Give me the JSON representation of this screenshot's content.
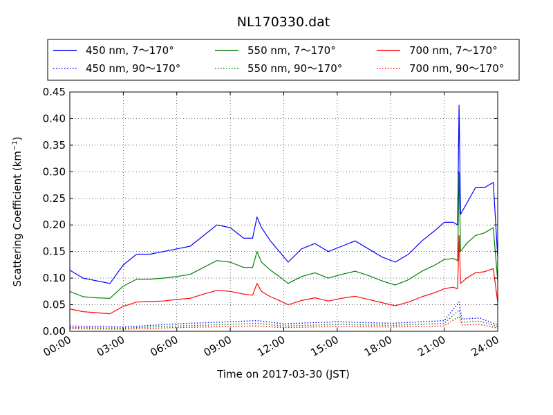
{
  "chart_data": {
    "type": "line",
    "title": "NL170330.dat",
    "xlabel": "Time on 2017-03-30 (JST)",
    "ylabel": "Scattering Coefficient (km⁻¹)",
    "ylabel_base": "Scattering Coefficient (km",
    "ylabel_sup": "−1",
    "ylabel_close": ")",
    "xlim": [
      "00:00",
      "24:00"
    ],
    "ylim": [
      0,
      0.45
    ],
    "grid": true,
    "legend_position": "top",
    "x_ticks": [
      "00:00",
      "03:00",
      "06:00",
      "09:00",
      "12:00",
      "15:00",
      "18:00",
      "21:00",
      "24:00"
    ],
    "y_ticks": [
      "0.00",
      "0.05",
      "0.10",
      "0.15",
      "0.20",
      "0.25",
      "0.30",
      "0.35",
      "0.40",
      "0.45"
    ],
    "series": [
      {
        "name": "450 nm, 7～170°",
        "color": "#0000ff",
        "style": "solid",
        "x": [
          "00:00",
          "00:45",
          "01:30",
          "02:15",
          "03:00",
          "03:45",
          "04:30",
          "05:15",
          "06:00",
          "06:45",
          "07:30",
          "08:15",
          "09:00",
          "09:45",
          "10:15",
          "10:30",
          "10:45",
          "11:15",
          "11:45",
          "12:15",
          "13:00",
          "13:45",
          "14:30",
          "15:15",
          "16:00",
          "16:45",
          "17:30",
          "18:15",
          "19:00",
          "19:45",
          "20:30",
          "21:00",
          "21:30",
          "21:45",
          "21:50",
          "21:55",
          "22:15",
          "22:45",
          "23:15",
          "23:45",
          "24:00"
        ],
        "y": [
          0.115,
          0.1,
          0.095,
          0.09,
          0.125,
          0.145,
          0.145,
          0.15,
          0.155,
          0.16,
          0.18,
          0.2,
          0.195,
          0.175,
          0.175,
          0.215,
          0.195,
          0.17,
          0.15,
          0.13,
          0.155,
          0.165,
          0.15,
          0.16,
          0.17,
          0.155,
          0.14,
          0.13,
          0.145,
          0.17,
          0.19,
          0.205,
          0.205,
          0.2,
          0.425,
          0.22,
          0.24,
          0.27,
          0.27,
          0.28,
          0.14
        ]
      },
      {
        "name": "450 nm, 90～170°",
        "color": "#0000ff",
        "style": "dotted",
        "x": [
          "00:00",
          "03:00",
          "06:00",
          "09:00",
          "10:30",
          "12:00",
          "15:00",
          "18:00",
          "21:00",
          "21:50",
          "22:00",
          "23:00",
          "24:00"
        ],
        "y": [
          0.01,
          0.008,
          0.014,
          0.018,
          0.02,
          0.014,
          0.018,
          0.015,
          0.02,
          0.055,
          0.023,
          0.025,
          0.012
        ]
      },
      {
        "name": "550 nm, 7～170°",
        "color": "#008000",
        "style": "solid",
        "x": [
          "00:00",
          "00:45",
          "01:30",
          "02:15",
          "03:00",
          "03:45",
          "04:30",
          "05:15",
          "06:00",
          "06:45",
          "07:30",
          "08:15",
          "09:00",
          "09:45",
          "10:15",
          "10:30",
          "10:45",
          "11:15",
          "11:45",
          "12:15",
          "13:00",
          "13:45",
          "14:30",
          "15:15",
          "16:00",
          "16:45",
          "17:30",
          "18:15",
          "19:00",
          "19:45",
          "20:30",
          "21:00",
          "21:30",
          "21:45",
          "21:50",
          "21:55",
          "22:15",
          "22:45",
          "23:15",
          "23:45",
          "24:00"
        ],
        "y": [
          0.075,
          0.065,
          0.063,
          0.062,
          0.085,
          0.098,
          0.098,
          0.1,
          0.103,
          0.107,
          0.12,
          0.133,
          0.13,
          0.12,
          0.12,
          0.15,
          0.13,
          0.115,
          0.103,
          0.09,
          0.103,
          0.11,
          0.1,
          0.107,
          0.113,
          0.105,
          0.095,
          0.087,
          0.097,
          0.113,
          0.125,
          0.135,
          0.137,
          0.133,
          0.3,
          0.15,
          0.165,
          0.18,
          0.185,
          0.195,
          0.095
        ]
      },
      {
        "name": "550 nm, 90～170°",
        "color": "#008000",
        "style": "dotted",
        "x": [
          "00:00",
          "03:00",
          "06:00",
          "09:00",
          "10:30",
          "12:00",
          "15:00",
          "18:00",
          "21:00",
          "21:50",
          "22:00",
          "23:00",
          "24:00"
        ],
        "y": [
          0.007,
          0.006,
          0.01,
          0.013,
          0.015,
          0.01,
          0.013,
          0.011,
          0.015,
          0.04,
          0.017,
          0.019,
          0.009
        ]
      },
      {
        "name": "700 nm, 7～170°",
        "color": "#ff0000",
        "style": "solid",
        "x": [
          "00:00",
          "00:45",
          "01:30",
          "02:15",
          "03:00",
          "03:45",
          "04:30",
          "05:15",
          "06:00",
          "06:45",
          "07:30",
          "08:15",
          "09:00",
          "09:45",
          "10:15",
          "10:30",
          "10:45",
          "11:15",
          "11:45",
          "12:15",
          "13:00",
          "13:45",
          "14:30",
          "15:15",
          "16:00",
          "16:45",
          "17:30",
          "18:15",
          "19:00",
          "19:45",
          "20:30",
          "21:00",
          "21:30",
          "21:45",
          "21:50",
          "21:55",
          "22:15",
          "22:45",
          "23:15",
          "23:45",
          "24:00"
        ],
        "y": [
          0.042,
          0.037,
          0.035,
          0.033,
          0.047,
          0.055,
          0.056,
          0.057,
          0.06,
          0.062,
          0.07,
          0.077,
          0.075,
          0.07,
          0.068,
          0.09,
          0.075,
          0.065,
          0.058,
          0.05,
          0.058,
          0.063,
          0.057,
          0.062,
          0.066,
          0.06,
          0.054,
          0.048,
          0.055,
          0.065,
          0.073,
          0.08,
          0.083,
          0.08,
          0.18,
          0.09,
          0.1,
          0.11,
          0.112,
          0.118,
          0.055
        ]
      },
      {
        "name": "700 nm, 90～170°",
        "color": "#ff0000",
        "style": "dotted",
        "x": [
          "00:00",
          "03:00",
          "06:00",
          "09:00",
          "10:30",
          "12:00",
          "15:00",
          "18:00",
          "21:00",
          "21:50",
          "22:00",
          "23:00",
          "24:00"
        ],
        "y": [
          0.005,
          0.004,
          0.007,
          0.009,
          0.01,
          0.007,
          0.009,
          0.008,
          0.01,
          0.028,
          0.012,
          0.013,
          0.006
        ]
      }
    ]
  }
}
